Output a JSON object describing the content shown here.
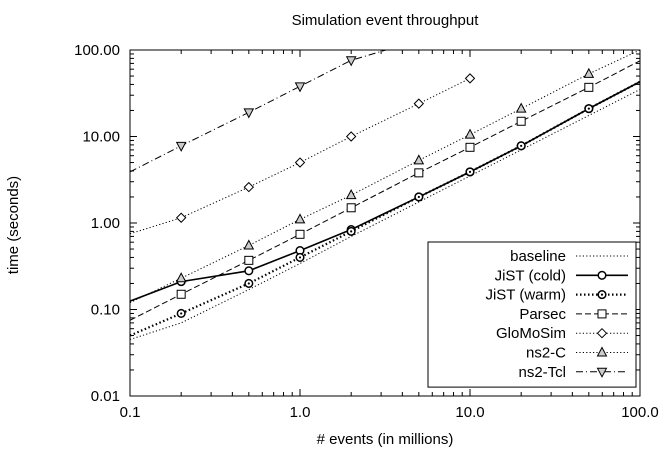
{
  "chart_data": {
    "type": "line",
    "title": "Simulation event throughput",
    "xlabel": "# events (in millions)",
    "ylabel": "time (seconds)",
    "x_scale": "log",
    "y_scale": "log",
    "xlim": [
      0.1,
      100
    ],
    "ylim": [
      0.01,
      100
    ],
    "x_ticks": [
      {
        "value": 0.1,
        "label": "0.1"
      },
      {
        "value": 1,
        "label": "1.0"
      },
      {
        "value": 10,
        "label": "10.0"
      },
      {
        "value": 100,
        "label": "100.0"
      }
    ],
    "y_ticks": [
      {
        "value": 0.01,
        "label": "0.01"
      },
      {
        "value": 0.1,
        "label": "0.10"
      },
      {
        "value": 1,
        "label": "1.00"
      },
      {
        "value": 10,
        "label": "10.00"
      },
      {
        "value": 100,
        "label": "100.00"
      }
    ],
    "grid": false,
    "legend_position": "bottom-right",
    "series": [
      {
        "name": "baseline",
        "style": "dotted",
        "marker": "none",
        "x": [
          0.1,
          0.2,
          0.5,
          1,
          2,
          5,
          10,
          20,
          50,
          100
        ],
        "y": [
          0.045,
          0.07,
          0.17,
          0.34,
          0.7,
          1.75,
          3.5,
          7.0,
          17.5,
          35
        ]
      },
      {
        "name": "JiST (cold)",
        "style": "solid",
        "marker": "circle",
        "x": [
          0.1,
          0.2,
          0.5,
          1,
          2,
          5,
          10,
          20,
          50,
          100
        ],
        "y": [
          0.125,
          0.21,
          0.28,
          0.48,
          0.84,
          2.0,
          3.9,
          7.8,
          21,
          43
        ]
      },
      {
        "name": "JiST (warm)",
        "style": "dotted-bold",
        "marker": "circle-dot",
        "x": [
          0.1,
          0.2,
          0.5,
          1,
          2,
          5,
          10,
          20,
          50,
          100
        ],
        "y": [
          0.05,
          0.09,
          0.2,
          0.4,
          0.8,
          2.0,
          3.9,
          7.8,
          21,
          43
        ]
      },
      {
        "name": "Parsec",
        "style": "dashed",
        "marker": "square",
        "x": [
          0.1,
          0.2,
          0.5,
          1,
          2,
          5,
          10,
          20,
          50,
          100
        ],
        "y": [
          0.075,
          0.15,
          0.37,
          0.74,
          1.5,
          3.8,
          7.5,
          15,
          37,
          75
        ]
      },
      {
        "name": "GloMoSim",
        "style": "dotted",
        "marker": "diamond",
        "x": [
          0.1,
          0.2,
          0.5,
          1,
          2,
          5,
          10
        ],
        "y": [
          0.75,
          1.15,
          2.6,
          5.0,
          10,
          24,
          47
        ]
      },
      {
        "name": "ns2-C",
        "style": "dotted",
        "marker": "triangle-up",
        "x": [
          0.1,
          0.2,
          0.5,
          1,
          2,
          5,
          10,
          20,
          50,
          100
        ],
        "y": [
          0.12,
          0.23,
          0.55,
          1.1,
          2.1,
          5.3,
          10.5,
          21,
          53,
          100
        ]
      },
      {
        "name": "ns2-Tcl",
        "style": "dash-dot",
        "marker": "triangle-down",
        "x": [
          0.1,
          0.2,
          0.5,
          1,
          2,
          3.2
        ],
        "y": [
          3.9,
          7.8,
          19,
          38,
          76,
          100
        ]
      }
    ]
  }
}
